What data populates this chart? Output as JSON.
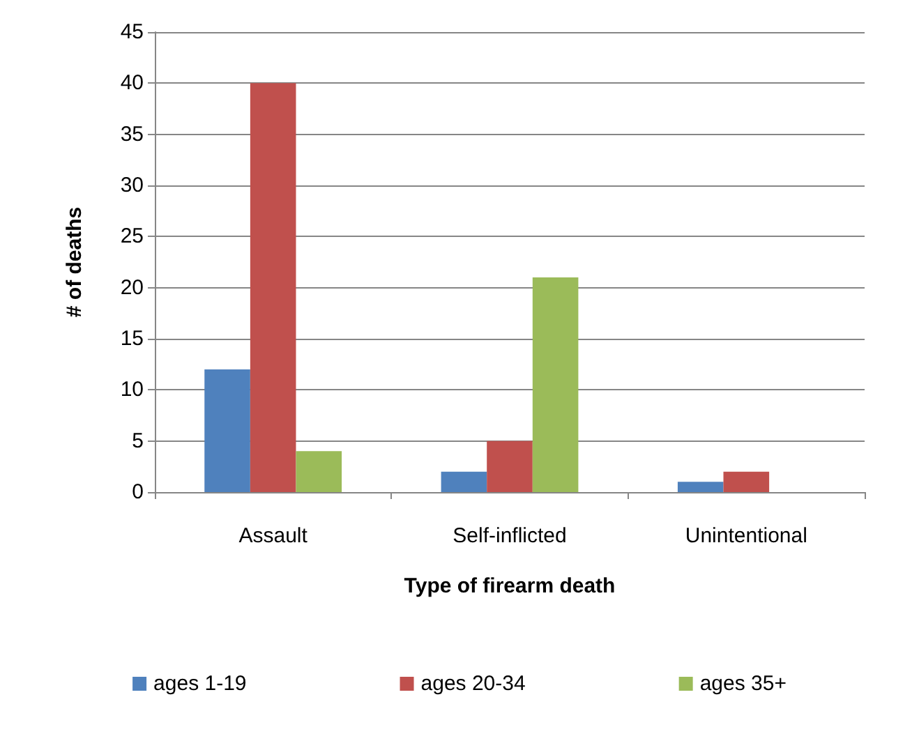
{
  "chart_data": {
    "type": "bar",
    "xlabel": "Type of firearm death",
    "ylabel": "# of deaths",
    "categories": [
      "Assault",
      "Self-inflicted",
      "Unintentional"
    ],
    "series": [
      {
        "name": "ages 1-19",
        "color": "#4f81bd",
        "values": [
          12,
          2,
          1
        ]
      },
      {
        "name": "ages 20-34",
        "color": "#c0504d",
        "values": [
          40,
          5,
          2
        ]
      },
      {
        "name": "ages 35+",
        "color": "#9bbb59",
        "values": [
          4,
          21,
          0
        ]
      }
    ],
    "ylim": [
      0,
      45
    ],
    "yticks": [
      0,
      5,
      10,
      15,
      20,
      25,
      30,
      35,
      40,
      45
    ],
    "grid": "y",
    "legend": "bottom"
  }
}
